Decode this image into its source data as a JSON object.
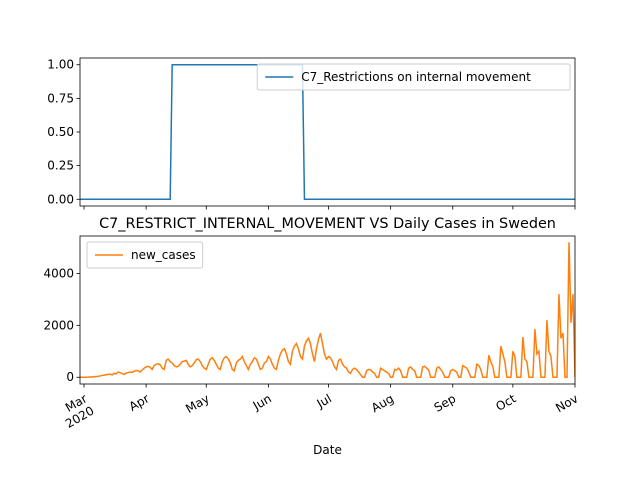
{
  "chart_data": [
    {
      "type": "line",
      "series": [
        {
          "name": "C7_Restrictions on internal movement",
          "color": "#1f77b4",
          "values": [
            0,
            0,
            0,
            0,
            0,
            0,
            0,
            0,
            0,
            0,
            0,
            0,
            0,
            0,
            0,
            0,
            0,
            0,
            0,
            0,
            0,
            0,
            0,
            0,
            0,
            0,
            0,
            0,
            0,
            0,
            0,
            0,
            0,
            0,
            0,
            0,
            0,
            0,
            0,
            0,
            0,
            0,
            0,
            0,
            0,
            0,
            1,
            1,
            1,
            1,
            1,
            1,
            1,
            1,
            1,
            1,
            1,
            1,
            1,
            1,
            1,
            1,
            1,
            1,
            1,
            1,
            1,
            1,
            1,
            1,
            1,
            1,
            1,
            1,
            1,
            1,
            1,
            1,
            1,
            1,
            1,
            1,
            1,
            1,
            1,
            1,
            1,
            1,
            1,
            1,
            1,
            1,
            1,
            1,
            1,
            1,
            1,
            1,
            1,
            1,
            1,
            1,
            1,
            1,
            1,
            1,
            1,
            1,
            1,
            1,
            1,
            1,
            0,
            0,
            0,
            0,
            0,
            0,
            0,
            0,
            0,
            0,
            0,
            0,
            0,
            0,
            0,
            0,
            0,
            0,
            0,
            0,
            0,
            0,
            0,
            0,
            0,
            0,
            0,
            0,
            0,
            0,
            0,
            0,
            0,
            0,
            0,
            0,
            0,
            0,
            0,
            0,
            0,
            0,
            0,
            0,
            0,
            0,
            0,
            0,
            0,
            0,
            0,
            0,
            0,
            0,
            0,
            0,
            0,
            0,
            0,
            0,
            0,
            0,
            0,
            0,
            0,
            0,
            0,
            0,
            0,
            0,
            0,
            0,
            0,
            0,
            0,
            0,
            0,
            0,
            0,
            0,
            0,
            0,
            0,
            0,
            0,
            0,
            0,
            0,
            0,
            0,
            0,
            0,
            0,
            0,
            0,
            0,
            0,
            0,
            0,
            0,
            0,
            0,
            0,
            0,
            0,
            0,
            0,
            0,
            0,
            0,
            0,
            0,
            0,
            0,
            0,
            0,
            0,
            0,
            0,
            0,
            0,
            0,
            0,
            0,
            0,
            0,
            0,
            0,
            0,
            0,
            0,
            0,
            0,
            0,
            0,
            0
          ]
        }
      ],
      "xlim": [
        0,
        247
      ],
      "xticks": [
        2,
        33,
        63,
        94,
        124,
        155,
        186,
        216,
        247
      ],
      "ylim": [
        -0.05,
        1.05
      ],
      "yticks": [
        {
          "value": 0,
          "label": "0.00"
        },
        {
          "value": 0.25,
          "label": "0.25"
        },
        {
          "value": 0.5,
          "label": "0.50"
        },
        {
          "value": 0.75,
          "label": "0.75"
        },
        {
          "value": 1,
          "label": "1.00"
        }
      ],
      "legend": "upper right"
    },
    {
      "type": "line",
      "title": "C7_RESTRICT_INTERNAL_MOVEMENT VS Daily Cases in Sweden",
      "xlabel": "Date",
      "series": [
        {
          "name": "new_cases",
          "color": "#ff7f0e",
          "values": [
            1,
            0,
            2,
            1,
            5,
            12,
            8,
            20,
            30,
            35,
            50,
            65,
            80,
            95,
            110,
            120,
            90,
            150,
            130,
            200,
            180,
            140,
            110,
            160,
            180,
            200,
            190,
            230,
            260,
            250,
            200,
            280,
            350,
            400,
            420,
            380,
            300,
            450,
            500,
            520,
            480,
            350,
            300,
            650,
            700,
            600,
            550,
            450,
            400,
            420,
            500,
            600,
            620,
            650,
            500,
            400,
            450,
            550,
            680,
            700,
            600,
            450,
            350,
            300,
            500,
            700,
            750,
            650,
            500,
            350,
            300,
            600,
            750,
            800,
            700,
            550,
            300,
            250,
            550,
            650,
            700,
            800,
            600,
            450,
            300,
            500,
            600,
            750,
            700,
            500,
            300,
            350,
            550,
            600,
            800,
            700,
            500,
            350,
            300,
            650,
            900,
            1050,
            1100,
            900,
            600,
            500,
            1000,
            1200,
            1300,
            1100,
            800,
            700,
            1200,
            1400,
            1500,
            1300,
            900,
            600,
            1100,
            1450,
            1700,
            1300,
            900,
            700,
            800,
            750,
            600,
            400,
            300,
            650,
            700,
            500,
            400,
            350,
            200,
            150,
            300,
            350,
            300,
            200,
            100,
            0,
            0,
            250,
            300,
            280,
            200,
            150,
            0,
            0,
            350,
            300,
            250,
            200,
            150,
            0,
            0,
            300,
            280,
            350,
            250,
            0,
            0,
            0,
            350,
            400,
            300,
            250,
            0,
            0,
            0,
            400,
            420,
            350,
            280,
            0,
            0,
            0,
            350,
            400,
            300,
            200,
            0,
            0,
            0,
            250,
            300,
            250,
            200,
            0,
            0,
            450,
            400,
            350,
            200,
            0,
            0,
            0,
            500,
            450,
            300,
            0,
            0,
            0,
            850,
            600,
            400,
            0,
            0,
            0,
            1200,
            900,
            600,
            0,
            0,
            0,
            1000,
            800,
            0,
            0,
            0,
            1550,
            700,
            600,
            0,
            0,
            0,
            1850,
            900,
            1000,
            0,
            0,
            0,
            2200,
            1000,
            800,
            0,
            0,
            0,
            3200,
            1500,
            1700,
            0,
            0,
            5200,
            2100,
            3200,
            0
          ]
        }
      ],
      "xlim": [
        0,
        247
      ],
      "xticks": [
        {
          "value": 2,
          "label": "Mar"
        },
        {
          "value": 33,
          "label": "Apr"
        },
        {
          "value": 63,
          "label": "May"
        },
        {
          "value": 94,
          "label": "Jun"
        },
        {
          "value": 124,
          "label": "Jul"
        },
        {
          "value": 155,
          "label": "Aug"
        },
        {
          "value": 186,
          "label": "Sep"
        },
        {
          "value": 216,
          "label": "Oct"
        },
        {
          "value": 247,
          "label": "Nov"
        }
      ],
      "xtick_sublabel": "2020",
      "ylim": [
        -260,
        5440
      ],
      "yticks": [
        0,
        2000,
        4000
      ],
      "legend": "upper left"
    }
  ]
}
